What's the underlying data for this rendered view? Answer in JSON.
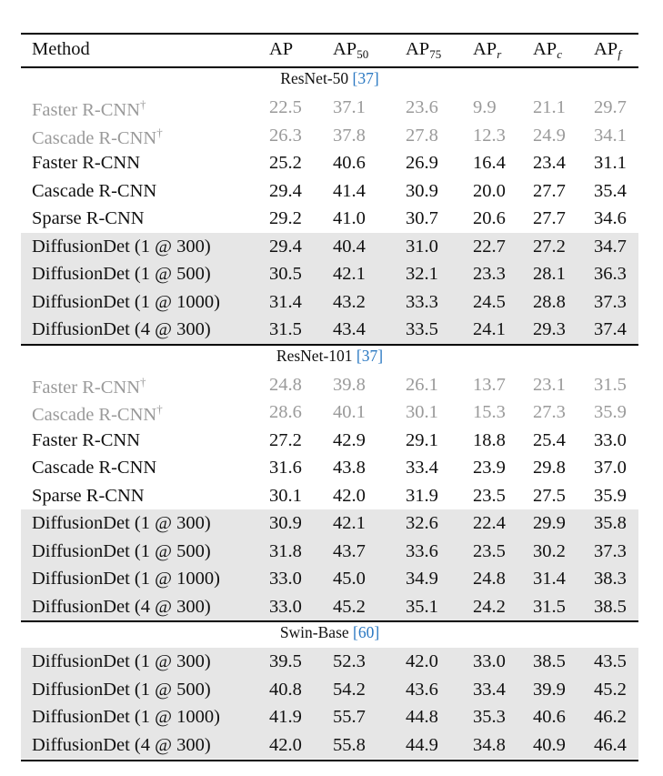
{
  "header": {
    "method": "Method",
    "cols": [
      {
        "base": "AP",
        "sub": "",
        "sub_italic": false
      },
      {
        "base": "AP",
        "sub": "50",
        "sub_italic": false
      },
      {
        "base": "AP",
        "sub": "75",
        "sub_italic": false
      },
      {
        "base": "AP",
        "sub": "r",
        "sub_italic": true
      },
      {
        "base": "AP",
        "sub": "c",
        "sub_italic": true
      },
      {
        "base": "AP",
        "sub": "f",
        "sub_italic": true
      }
    ]
  },
  "sections": [
    {
      "backbone": "ResNet-50",
      "ref": "[37]",
      "rows": [
        {
          "method": "Faster R-CNN",
          "dagger": true,
          "values": [
            "22.5",
            "37.1",
            "23.6",
            "9.9",
            "21.1",
            "29.7"
          ],
          "style": "gray"
        },
        {
          "method": "Cascade R-CNN",
          "dagger": true,
          "values": [
            "26.3",
            "37.8",
            "27.8",
            "12.3",
            "24.9",
            "34.1"
          ],
          "style": "gray"
        },
        {
          "method": "Faster R-CNN",
          "dagger": false,
          "values": [
            "25.2",
            "40.6",
            "26.9",
            "16.4",
            "23.4",
            "31.1"
          ],
          "style": "normal"
        },
        {
          "method": "Cascade R-CNN",
          "dagger": false,
          "values": [
            "29.4",
            "41.4",
            "30.9",
            "20.0",
            "27.7",
            "35.4"
          ],
          "style": "normal"
        },
        {
          "method": "Sparse R-CNN",
          "dagger": false,
          "values": [
            "29.2",
            "41.0",
            "30.7",
            "20.6",
            "27.7",
            "34.6"
          ],
          "style": "normal"
        },
        {
          "method": "DiffusionDet (1 @ 300)",
          "dagger": false,
          "values": [
            "29.4",
            "40.4",
            "31.0",
            "22.7",
            "27.2",
            "34.7"
          ],
          "style": "shaded"
        },
        {
          "method": "DiffusionDet (1 @ 500)",
          "dagger": false,
          "values": [
            "30.5",
            "42.1",
            "32.1",
            "23.3",
            "28.1",
            "36.3"
          ],
          "style": "shaded"
        },
        {
          "method": "DiffusionDet (1 @ 1000)",
          "dagger": false,
          "values": [
            "31.4",
            "43.2",
            "33.3",
            "24.5",
            "28.8",
            "37.3"
          ],
          "style": "shaded"
        },
        {
          "method": "DiffusionDet (4 @ 300)",
          "dagger": false,
          "values": [
            "31.5",
            "43.4",
            "33.5",
            "24.1",
            "29.3",
            "37.4"
          ],
          "style": "shaded"
        }
      ]
    },
    {
      "backbone": "ResNet-101",
      "ref": "[37]",
      "rows": [
        {
          "method": "Faster R-CNN",
          "dagger": true,
          "values": [
            "24.8",
            "39.8",
            "26.1",
            "13.7",
            "23.1",
            "31.5"
          ],
          "style": "gray"
        },
        {
          "method": "Cascade R-CNN",
          "dagger": true,
          "values": [
            "28.6",
            "40.1",
            "30.1",
            "15.3",
            "27.3",
            "35.9"
          ],
          "style": "gray"
        },
        {
          "method": "Faster R-CNN",
          "dagger": false,
          "values": [
            "27.2",
            "42.9",
            "29.1",
            "18.8",
            "25.4",
            "33.0"
          ],
          "style": "normal"
        },
        {
          "method": "Cascade R-CNN",
          "dagger": false,
          "values": [
            "31.6",
            "43.8",
            "33.4",
            "23.9",
            "29.8",
            "37.0"
          ],
          "style": "normal"
        },
        {
          "method": "Sparse R-CNN",
          "dagger": false,
          "values": [
            "30.1",
            "42.0",
            "31.9",
            "23.5",
            "27.5",
            "35.9"
          ],
          "style": "normal"
        },
        {
          "method": "DiffusionDet (1 @ 300)",
          "dagger": false,
          "values": [
            "30.9",
            "42.1",
            "32.6",
            "22.4",
            "29.9",
            "35.8"
          ],
          "style": "shaded"
        },
        {
          "method": "DiffusionDet (1 @ 500)",
          "dagger": false,
          "values": [
            "31.8",
            "43.7",
            "33.6",
            "23.5",
            "30.2",
            "37.3"
          ],
          "style": "shaded"
        },
        {
          "method": "DiffusionDet (1 @ 1000)",
          "dagger": false,
          "values": [
            "33.0",
            "45.0",
            "34.9",
            "24.8",
            "31.4",
            "38.3"
          ],
          "style": "shaded"
        },
        {
          "method": "DiffusionDet (4 @ 300)",
          "dagger": false,
          "values": [
            "33.0",
            "45.2",
            "35.1",
            "24.2",
            "31.5",
            "38.5"
          ],
          "style": "shaded"
        }
      ]
    },
    {
      "backbone": "Swin-Base",
      "ref": "[60]",
      "rows": [
        {
          "method": "DiffusionDet (1 @ 300)",
          "dagger": false,
          "values": [
            "39.5",
            "52.3",
            "42.0",
            "33.0",
            "38.5",
            "43.5"
          ],
          "style": "shaded"
        },
        {
          "method": "DiffusionDet (1 @ 500)",
          "dagger": false,
          "values": [
            "40.8",
            "54.2",
            "43.6",
            "33.4",
            "39.9",
            "45.2"
          ],
          "style": "shaded"
        },
        {
          "method": "DiffusionDet (1 @ 1000)",
          "dagger": false,
          "values": [
            "41.9",
            "55.7",
            "44.8",
            "35.3",
            "40.6",
            "46.2"
          ],
          "style": "shaded"
        },
        {
          "method": "DiffusionDet (4 @ 300)",
          "dagger": false,
          "values": [
            "42.0",
            "55.8",
            "44.9",
            "34.8",
            "40.9",
            "46.4"
          ],
          "style": "shaded"
        }
      ]
    }
  ],
  "colors": {
    "gray_text": "#9a9a9a",
    "shade": "#e6e6e6",
    "ref_link": "#2a78c2"
  }
}
